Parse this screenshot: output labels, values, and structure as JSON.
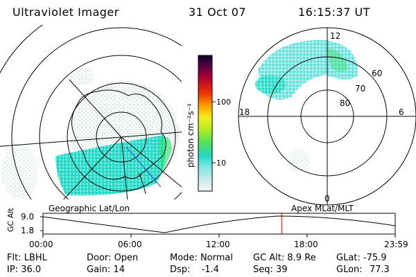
{
  "header": {
    "instrument": "Ultraviolet Imager",
    "date": "31 Oct 07",
    "time": "16:15:37 UT"
  },
  "colorbar": {
    "unit_label": "photon cm⁻²s⁻¹",
    "ticks": [
      "100",
      "10"
    ]
  },
  "left_map": {
    "label": "Geographic Lat/Lon"
  },
  "right_map": {
    "label": "Apex MLat/MLT",
    "mlt_labels": {
      "top": "12",
      "left": "18",
      "right": "6",
      "bottom": "0"
    },
    "lat_labels": [
      "60",
      "70",
      "80"
    ]
  },
  "altitude_strip": {
    "axis_label": "GC Alt",
    "y_ticks": [
      "9.0",
      "1.8"
    ],
    "x_ticks": [
      "00:00",
      "06:00",
      "12:00",
      "18:00",
      "23:59"
    ],
    "marker_time_hours": 16.26
  },
  "status": {
    "filter": {
      "label": "Flt:",
      "value": "LBHL"
    },
    "ip": {
      "label": "IP:",
      "value": "36.0"
    },
    "door": {
      "label": "Door:",
      "value": "Open"
    },
    "gain": {
      "label": "Gain:",
      "value": "14"
    },
    "mode": {
      "label": "Mode:",
      "value": "Normal"
    },
    "dsp": {
      "label": "Dsp:",
      "value": "-1.4"
    },
    "gc_alt": {
      "label": "GC Alt:",
      "value": "8.9 Re"
    },
    "seq": {
      "label": "Seq:",
      "value": "39"
    },
    "glat": {
      "label": "GLat:",
      "value": "-75.9"
    },
    "glon": {
      "label": "GLon:",
      "value": "77.3"
    }
  },
  "colors": {
    "emission_low": "#bfe8e8",
    "emission_mid": "#2ee6c8",
    "emission_high": "#22dd66",
    "marker": "#cc0000"
  }
}
